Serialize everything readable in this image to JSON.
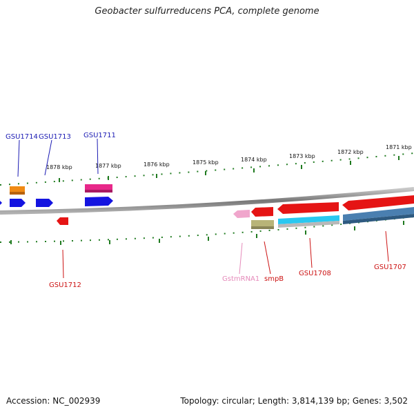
{
  "title": "Geobacter sulfurreducens PCA, complete genome",
  "footer": {
    "accession": "Accession: NC_002939",
    "stats": "Topology: circular; Length: 3,814,139 bp; Genes: 3,502"
  },
  "scale_labels": [
    "1878 kbp",
    "1877 kbp",
    "1876 kbp",
    "1875 kbp",
    "1874 kbp",
    "1873 kbp",
    "1872 kbp",
    "1871 kbp"
  ],
  "labels": {
    "GSU1714": "GSU1714",
    "GSU1713": "GSU1713",
    "GSU1711": "GSU1711",
    "GSU1712": "GSU1712",
    "GstmRNA1": "GstmRNA1",
    "smpB": "smpB",
    "GSU1708": "GSU1708",
    "GSU1707": "GSU1707"
  },
  "colors": {
    "backbone": "#8c8c8c",
    "tick": "#1f7a1f",
    "blue_gene": "#1414e0",
    "red_gene": "#e51414",
    "orange_gene": "#f08a14",
    "pink_gene": "#e8288a",
    "light_pink_rna": "#f0a6cc",
    "olive_gene": "#b8b478",
    "cyan_gene": "#29c8f0",
    "steel_gene": "#4a7fb0"
  }
}
